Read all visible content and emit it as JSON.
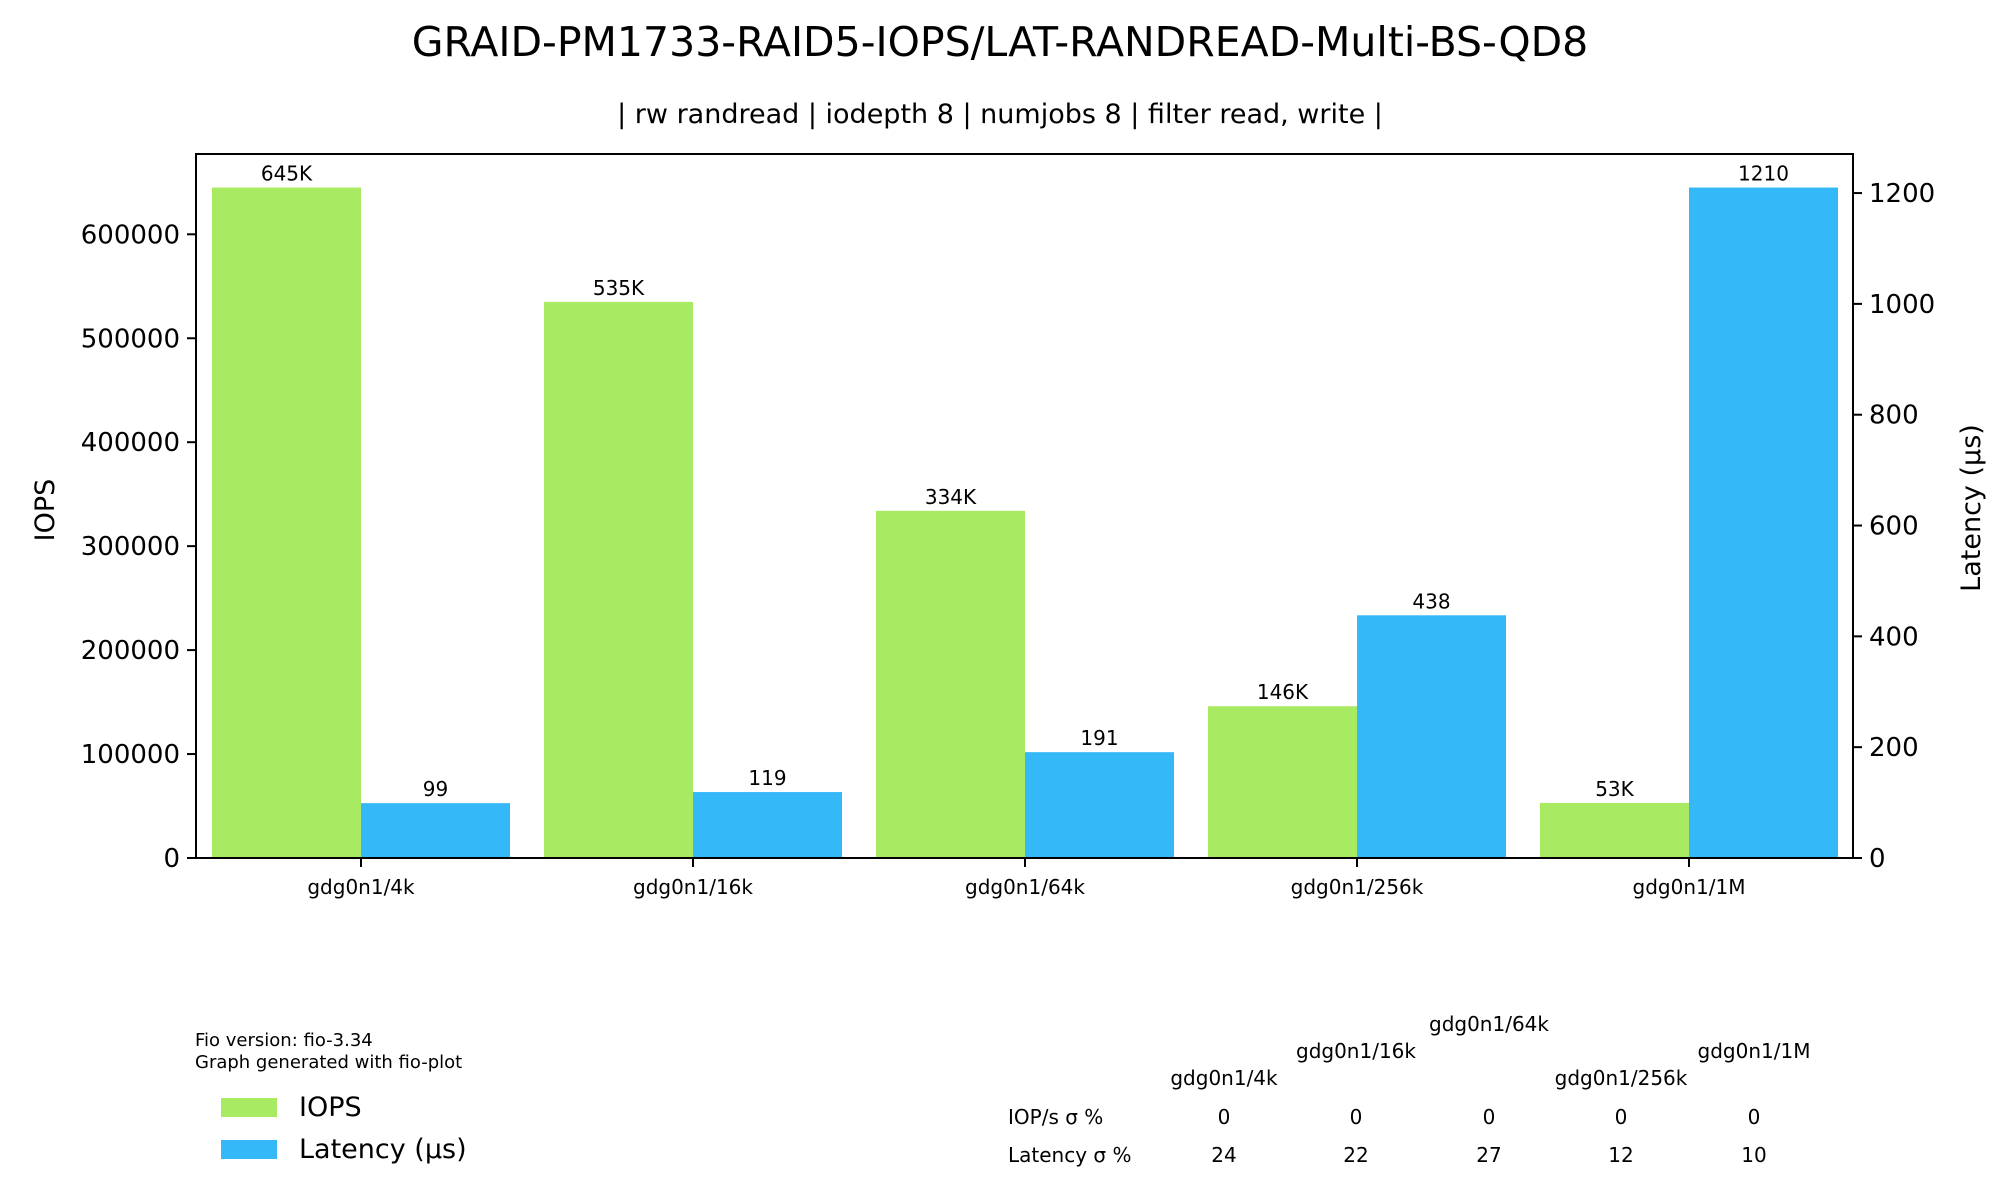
{
  "chart_data": {
    "type": "bar",
    "title": "GRAID-PM1733-RAID5-IOPS/LAT-RANDREAD-Multi-BS-QD8",
    "subtitle": "| rw randread | iodepth 8 | numjobs 8 | filter read, write |",
    "xlabel": "",
    "ylabel_left": "IOPS",
    "ylabel_right": "Latency (µs)",
    "ylim_left": [
      0,
      677250
    ],
    "ylim_right": [
      0,
      1270.5
    ],
    "yticks_left": [
      "0",
      "100000",
      "200000",
      "300000",
      "400000",
      "500000",
      "600000"
    ],
    "yticks_right": [
      "0",
      "200",
      "400",
      "600",
      "800",
      "1000",
      "1200"
    ],
    "categories": [
      "gdg0n1/4k",
      "gdg0n1/16k",
      "gdg0n1/64k",
      "gdg0n1/256k",
      "gdg0n1/1M"
    ],
    "series": [
      {
        "name": "IOPS",
        "axis": "left",
        "color": "#a8eb62",
        "values": [
          645000,
          535000,
          334000,
          146000,
          53000
        ],
        "labels": [
          "645K",
          "535K",
          "334K",
          "146K",
          "53K"
        ]
      },
      {
        "name": "Latency (µs)",
        "axis": "right",
        "color": "#35b8f8",
        "values": [
          99,
          119,
          191,
          438,
          1210
        ],
        "labels": [
          "99",
          "119",
          "191",
          "438",
          "1210"
        ]
      }
    ],
    "legend": {
      "placement": "bottom-left",
      "entries": [
        "IOPS",
        "Latency (µs)"
      ]
    },
    "footer": {
      "lines": [
        "Fio version: fio-3.34",
        "Graph generated with fio-plot"
      ]
    },
    "stddev_table": {
      "columns": [
        "gdg0n1/4k",
        "gdg0n1/16k",
        "gdg0n1/64k",
        "gdg0n1/256k",
        "gdg0n1/1M"
      ],
      "rows": [
        {
          "label": "IOP/s σ %",
          "values": [
            "0",
            "0",
            "0",
            "0",
            "0"
          ]
        },
        {
          "label": "Latency σ %",
          "values": [
            "24",
            "22",
            "27",
            "12",
            "10"
          ]
        }
      ]
    },
    "grid": false
  }
}
